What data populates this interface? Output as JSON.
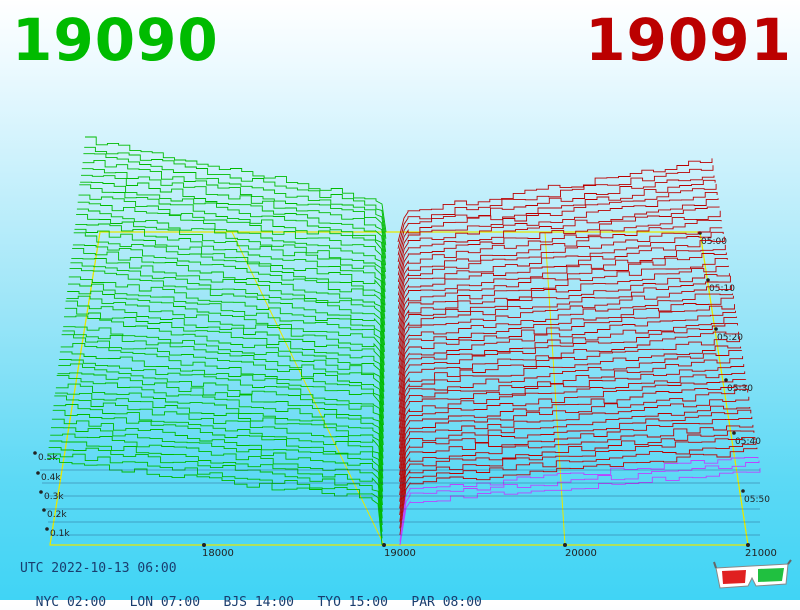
{
  "header": {
    "bid_price": "19090",
    "ask_price": "19091"
  },
  "clocks": {
    "utc": "UTC 2022-10-13 06:00",
    "cities": [
      {
        "label": "NYC 02:00"
      },
      {
        "label": "LON 07:00"
      },
      {
        "label": "BJS 14:00"
      },
      {
        "label": "TYO 15:00"
      },
      {
        "label": "PAR 08:00"
      }
    ]
  },
  "chart_data": {
    "type": "area",
    "mid_price": 19090.5,
    "x_ticks": [
      "18000",
      "19000",
      "20000",
      "21000"
    ],
    "x_range": [
      17250,
      21000
    ],
    "depth_ticks": [
      "0.1k",
      "0.2k",
      "0.3k",
      "0.4k",
      "0.5k"
    ],
    "time_ticks": [
      "05:00",
      "05:10",
      "05:20",
      "05:30",
      "05:40",
      "05:50"
    ],
    "series": [
      {
        "side": "bid",
        "color": "#00bb00"
      },
      {
        "side": "ask",
        "color": "#bb0000"
      }
    ],
    "colors": {
      "grid": "#e8e800",
      "bid_line": "#00bb00",
      "ask_line": "#bb0000",
      "ask_recent": "#bb44ff"
    }
  }
}
